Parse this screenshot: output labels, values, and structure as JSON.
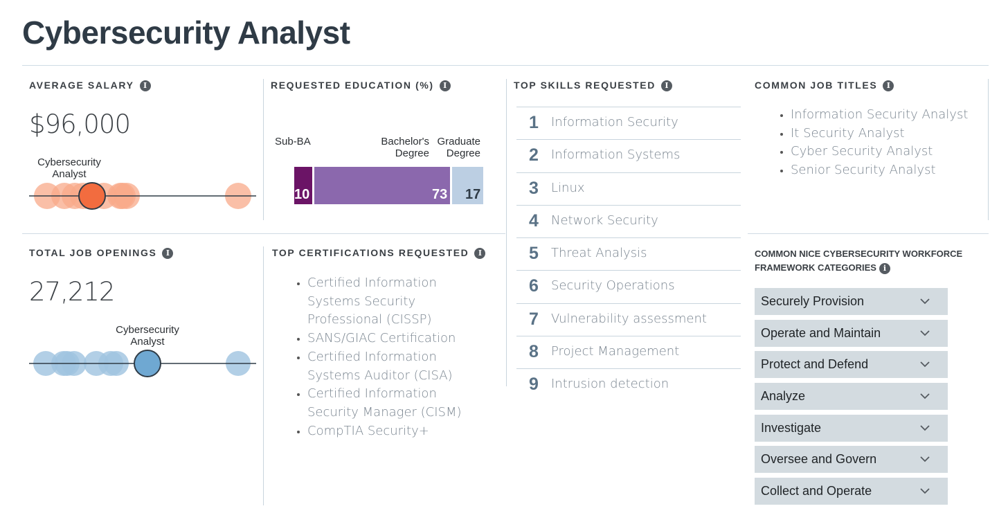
{
  "title": "Cybersecurity Analyst",
  "salary": {
    "heading": "AVERAGE SALARY",
    "value": "$96,000",
    "marker_label_line1": "Cybersecurity",
    "marker_label_line2": "Analyst",
    "color": "#f26c3f",
    "light_color": "#f8a98a",
    "icon": "info-icon"
  },
  "education": {
    "heading": "REQUESTED EDUCATION (%)",
    "icon": "info-icon",
    "segments": [
      {
        "label1": "Sub-BA",
        "label2": "",
        "value": "10",
        "color": "#6b1466"
      },
      {
        "label1": "Bachelor's",
        "label2": "Degree",
        "value": "73",
        "color": "#8b68ad"
      },
      {
        "label1": "Graduate",
        "label2": "Degree",
        "value": "17",
        "color": "#bccfe3"
      }
    ]
  },
  "skills": {
    "heading": "TOP SKILLS REQUESTED",
    "icon": "info-icon",
    "items": [
      {
        "num": "1",
        "name": "Information Security"
      },
      {
        "num": "2",
        "name": "Information Systems"
      },
      {
        "num": "3",
        "name": "Linux"
      },
      {
        "num": "4",
        "name": "Network Security"
      },
      {
        "num": "5",
        "name": "Threat Analysis"
      },
      {
        "num": "6",
        "name": "Security Operations"
      },
      {
        "num": "7",
        "name": "Vulnerability assessment"
      },
      {
        "num": "8",
        "name": "Project Management"
      },
      {
        "num": "9",
        "name": "Intrusion detection"
      }
    ]
  },
  "job_titles": {
    "heading": "COMMON JOB TITLES",
    "icon": "info-icon",
    "items": [
      "Information Security Analyst",
      "It Security Analyst",
      "Cyber Security Analyst",
      "Senior Security Analyst"
    ]
  },
  "openings": {
    "heading": "TOTAL JOB OPENINGS",
    "value": "27,212",
    "marker_label_line1": "Cybersecurity",
    "marker_label_line2": "Analyst",
    "color": "#6fa8d2",
    "light_color": "#9fc3e0",
    "icon": "info-icon"
  },
  "certifications": {
    "heading": "TOP CERTIFICATIONS REQUESTED",
    "icon": "info-icon",
    "items": [
      "Certified Information Systems Security Professional (CISSP)",
      "SANS/GIAC Certification",
      "Certified Information Systems Auditor (CISA)",
      "Certified Information Security Manager (CISM)",
      "CompTIA Security+"
    ]
  },
  "nice": {
    "heading_line1": "COMMON NICE CYBERSECURITY WORKFORCE",
    "heading_line2": "FRAMEWORK CATEGORIES",
    "icon": "info-icon",
    "chevron_icon": "chevron-down-icon",
    "categories": [
      "Securely Provision",
      "Operate and Maintain",
      "Protect and Defend",
      "Analyze",
      "Investigate",
      "Oversee and Govern",
      "Collect and Operate"
    ]
  }
}
